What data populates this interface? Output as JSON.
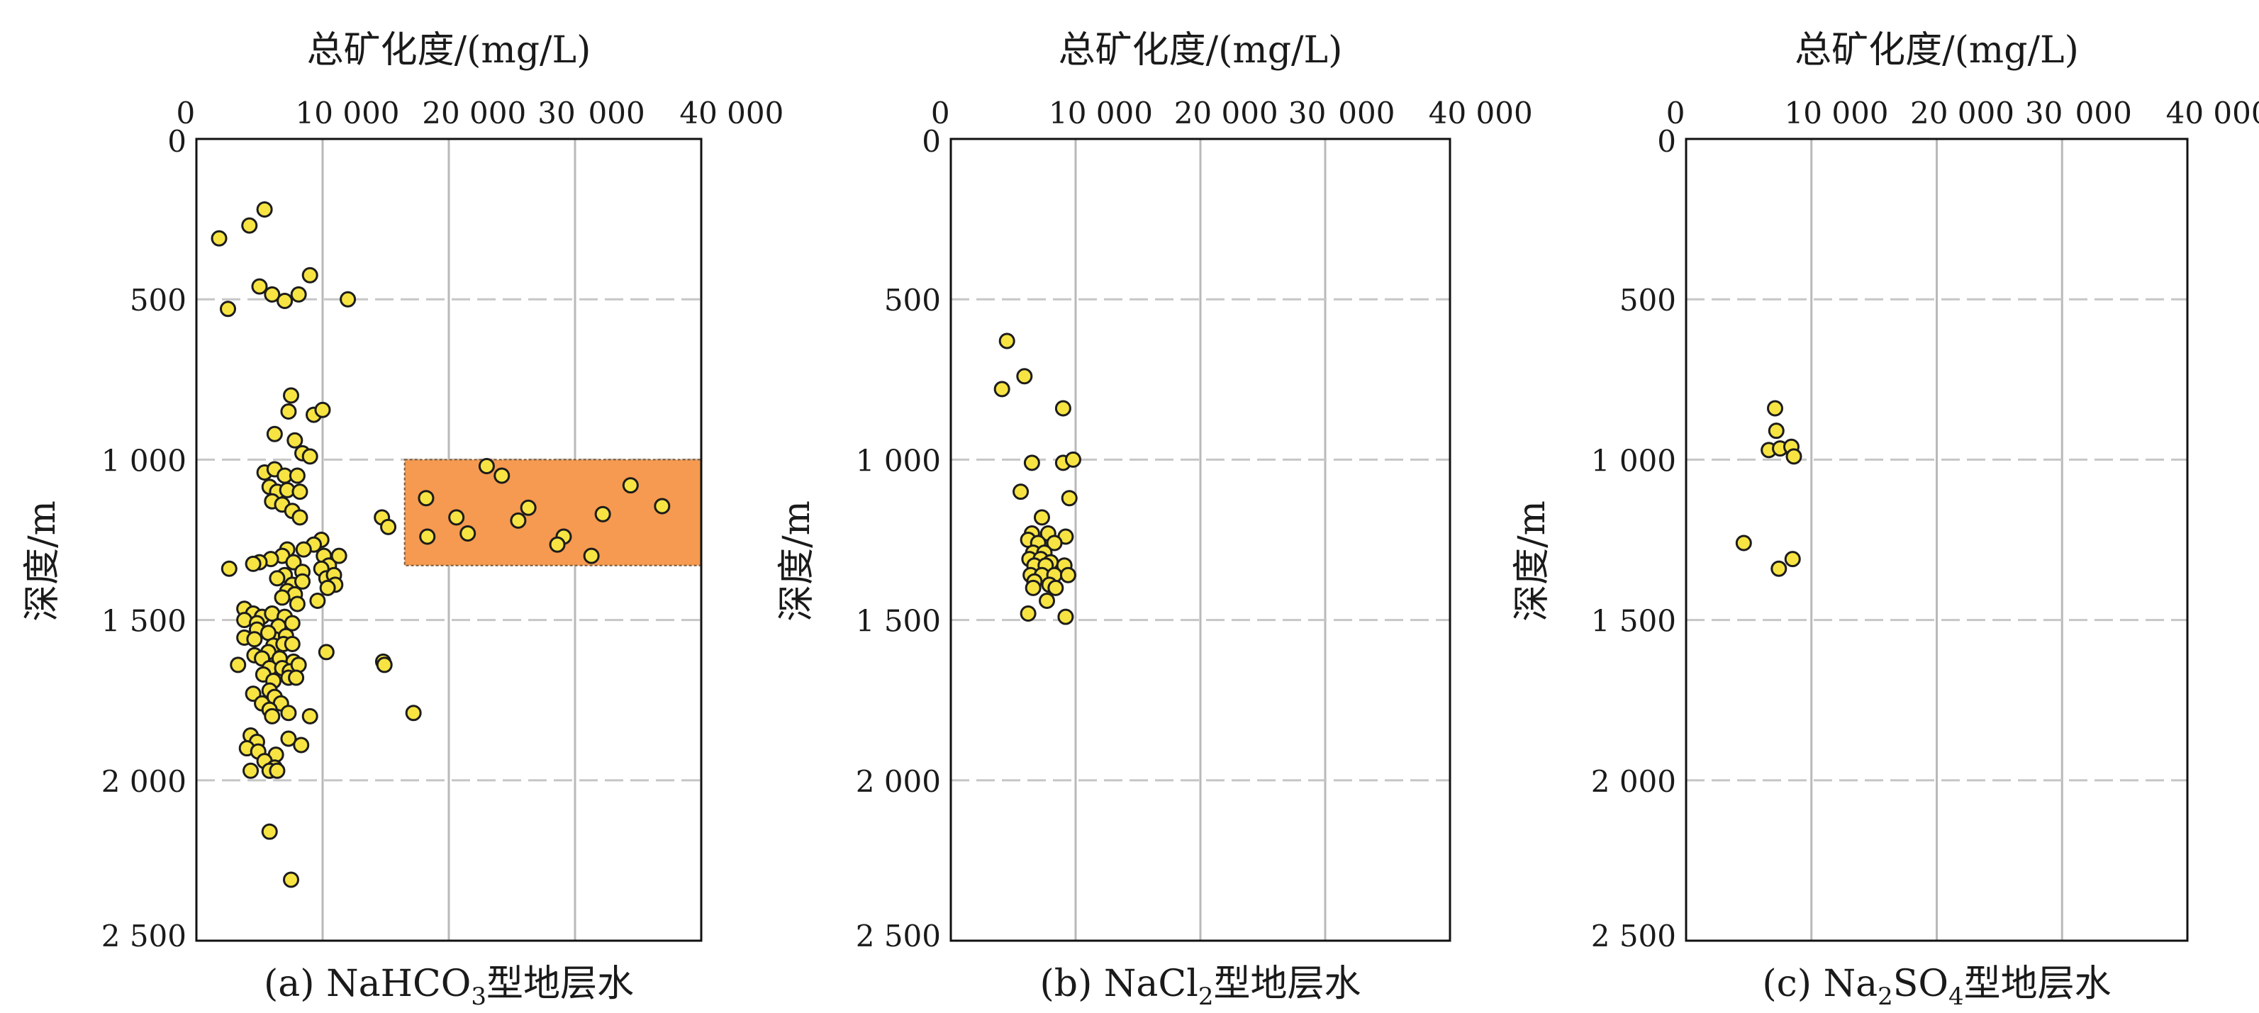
{
  "figure": {
    "marker_fill": "#f7e442",
    "marker_stroke": "#1c1c1c",
    "highlight_fill": "#f59a50",
    "highlight_stroke": "#7a5a3a"
  },
  "chart_data": [
    {
      "type": "scatter",
      "caption": "(a) NaHCO3型地层水",
      "caption_parts": {
        "pre": "(a) NaHCO",
        "sub": "3",
        "post": "型地层水"
      },
      "xlabel": "总矿化度/(mg/L)",
      "ylabel": "深度/m",
      "xlim": [
        0,
        40000
      ],
      "ylim": [
        0,
        2500
      ],
      "y_inverted": true,
      "x_axis_position": "top",
      "grid": true,
      "x_tick_labels": [
        "0",
        "10 000",
        "20 000",
        "30",
        "000",
        "40 000"
      ],
      "y_ticks": [
        0,
        500,
        1000,
        1500,
        2000,
        2500
      ],
      "y_tick_labels": [
        "0",
        "500",
        "1 000",
        "1 500",
        "2 000",
        "2 500"
      ],
      "highlight_region": {
        "x": [
          16500,
          40000
        ],
        "y": [
          1000,
          1330
        ]
      },
      "points": [
        [
          1800,
          310
        ],
        [
          5400,
          220
        ],
        [
          4200,
          270
        ],
        [
          2500,
          530
        ],
        [
          5000,
          460
        ],
        [
          6000,
          485
        ],
        [
          7000,
          505
        ],
        [
          8100,
          485
        ],
        [
          9000,
          425
        ],
        [
          12000,
          500
        ],
        [
          7500,
          800
        ],
        [
          7300,
          850
        ],
        [
          9300,
          860
        ],
        [
          10000,
          845
        ],
        [
          6200,
          920
        ],
        [
          7800,
          940
        ],
        [
          8400,
          980
        ],
        [
          9000,
          990
        ],
        [
          5400,
          1040
        ],
        [
          6200,
          1030
        ],
        [
          7000,
          1050
        ],
        [
          8000,
          1050
        ],
        [
          5800,
          1085
        ],
        [
          6400,
          1100
        ],
        [
          7200,
          1095
        ],
        [
          8200,
          1100
        ],
        [
          6000,
          1130
        ],
        [
          6800,
          1140
        ],
        [
          7600,
          1160
        ],
        [
          8200,
          1180
        ],
        [
          14700,
          1180
        ],
        [
          15200,
          1210
        ],
        [
          9900,
          1250
        ],
        [
          9300,
          1265
        ],
        [
          8500,
          1280
        ],
        [
          7200,
          1280
        ],
        [
          6800,
          1300
        ],
        [
          5900,
          1310
        ],
        [
          5000,
          1320
        ],
        [
          4500,
          1325
        ],
        [
          2600,
          1340
        ],
        [
          7700,
          1320
        ],
        [
          8400,
          1350
        ],
        [
          7000,
          1360
        ],
        [
          6400,
          1370
        ],
        [
          7600,
          1390
        ],
        [
          8400,
          1380
        ],
        [
          10100,
          1300
        ],
        [
          10500,
          1330
        ],
        [
          11300,
          1300
        ],
        [
          9900,
          1340
        ],
        [
          10300,
          1370
        ],
        [
          10900,
          1360
        ],
        [
          11000,
          1390
        ],
        [
          10400,
          1400
        ],
        [
          7200,
          1410
        ],
        [
          7800,
          1420
        ],
        [
          6800,
          1430
        ],
        [
          9600,
          1440
        ],
        [
          8000,
          1450
        ],
        [
          3800,
          1465
        ],
        [
          4500,
          1480
        ],
        [
          5200,
          1490
        ],
        [
          6000,
          1480
        ],
        [
          7000,
          1490
        ],
        [
          3800,
          1500
        ],
        [
          4800,
          1510
        ],
        [
          6500,
          1520
        ],
        [
          7600,
          1510
        ],
        [
          6200,
          1560
        ],
        [
          4800,
          1530
        ],
        [
          5700,
          1540
        ],
        [
          7100,
          1550
        ],
        [
          3800,
          1555
        ],
        [
          4600,
          1560
        ],
        [
          6100,
          1580
        ],
        [
          6900,
          1575
        ],
        [
          7600,
          1575
        ],
        [
          5700,
          1600
        ],
        [
          10300,
          1600
        ],
        [
          4600,
          1610
        ],
        [
          5200,
          1620
        ],
        [
          6600,
          1620
        ],
        [
          7700,
          1630
        ],
        [
          14800,
          1630
        ],
        [
          3300,
          1640
        ],
        [
          5800,
          1650
        ],
        [
          6800,
          1650
        ],
        [
          7400,
          1660
        ],
        [
          8100,
          1640
        ],
        [
          14900,
          1640
        ],
        [
          5300,
          1670
        ],
        [
          7300,
          1680
        ],
        [
          6100,
          1690
        ],
        [
          7900,
          1680
        ],
        [
          5800,
          1720
        ],
        [
          4500,
          1730
        ],
        [
          6200,
          1740
        ],
        [
          5200,
          1760
        ],
        [
          6700,
          1760
        ],
        [
          5800,
          1780
        ],
        [
          7300,
          1790
        ],
        [
          6000,
          1800
        ],
        [
          9000,
          1800
        ],
        [
          17200,
          1790
        ],
        [
          4300,
          1860
        ],
        [
          4800,
          1880
        ],
        [
          7300,
          1870
        ],
        [
          8300,
          1890
        ],
        [
          4000,
          1900
        ],
        [
          4900,
          1910
        ],
        [
          6300,
          1920
        ],
        [
          5400,
          1940
        ],
        [
          6200,
          1960
        ],
        [
          4300,
          1970
        ],
        [
          5800,
          1970
        ],
        [
          6400,
          1970
        ],
        [
          5800,
          2160
        ],
        [
          7500,
          2310
        ],
        [
          23000,
          1020
        ],
        [
          24200,
          1050
        ],
        [
          18200,
          1120
        ],
        [
          20600,
          1180
        ],
        [
          32200,
          1170
        ],
        [
          26300,
          1150
        ],
        [
          25500,
          1190
        ],
        [
          21500,
          1230
        ],
        [
          18300,
          1240
        ],
        [
          29100,
          1240
        ],
        [
          28600,
          1265
        ],
        [
          31300,
          1300
        ],
        [
          34400,
          1080
        ],
        [
          36900,
          1145
        ]
      ]
    },
    {
      "type": "scatter",
      "caption": "(b) NaCl2型地层水",
      "caption_parts": {
        "pre": "(b) NaCl",
        "sub": "2",
        "post": "型地层水"
      },
      "xlabel": "总矿化度/(mg/L)",
      "ylabel": "深度/m",
      "xlim": [
        0,
        40000
      ],
      "ylim": [
        0,
        2500
      ],
      "y_inverted": true,
      "x_axis_position": "top",
      "grid": true,
      "x_tick_labels": [
        "0",
        "10 000",
        "20 000",
        "30",
        "000",
        "40 000"
      ],
      "y_ticks": [
        0,
        500,
        1000,
        1500,
        2000,
        2500
      ],
      "y_tick_labels": [
        "0",
        "500",
        "1 000",
        "1 500",
        "2 000",
        "2 500"
      ],
      "points": [
        [
          4500,
          630
        ],
        [
          4100,
          780
        ],
        [
          5900,
          740
        ],
        [
          9000,
          840
        ],
        [
          6500,
          1010
        ],
        [
          9000,
          1010
        ],
        [
          9800,
          1000
        ],
        [
          5600,
          1100
        ],
        [
          9500,
          1120
        ],
        [
          7300,
          1180
        ],
        [
          6500,
          1230
        ],
        [
          7800,
          1230
        ],
        [
          9200,
          1240
        ],
        [
          6200,
          1250
        ],
        [
          7000,
          1260
        ],
        [
          8300,
          1260
        ],
        [
          6600,
          1290
        ],
        [
          7500,
          1290
        ],
        [
          6300,
          1310
        ],
        [
          7200,
          1310
        ],
        [
          8000,
          1320
        ],
        [
          6700,
          1330
        ],
        [
          7600,
          1330
        ],
        [
          9100,
          1330
        ],
        [
          6400,
          1360
        ],
        [
          7300,
          1360
        ],
        [
          8300,
          1360
        ],
        [
          9400,
          1360
        ],
        [
          6700,
          1380
        ],
        [
          7900,
          1390
        ],
        [
          6600,
          1400
        ],
        [
          8400,
          1400
        ],
        [
          7700,
          1440
        ],
        [
          6200,
          1480
        ],
        [
          9200,
          1490
        ]
      ]
    },
    {
      "type": "scatter",
      "caption": "(c) Na2SO4型地层水",
      "caption_parts": {
        "pre": "(c) Na",
        "sub": "2",
        "mid": "SO",
        "sub2": "4",
        "post": "型地层水"
      },
      "xlabel": "总矿化度/(mg/L)",
      "ylabel": "深度/m",
      "xlim": [
        0,
        40000
      ],
      "ylim": [
        0,
        2500
      ],
      "y_inverted": true,
      "x_axis_position": "top",
      "grid": true,
      "x_tick_labels": [
        "0",
        "10 000",
        "20 000",
        "30",
        "000",
        "40 000"
      ],
      "y_ticks": [
        0,
        500,
        1000,
        1500,
        2000,
        2500
      ],
      "y_tick_labels": [
        "0",
        "500",
        "1 000",
        "1 500",
        "2 000",
        "2 500"
      ],
      "points": [
        [
          7100,
          840
        ],
        [
          7200,
          910
        ],
        [
          6600,
          970
        ],
        [
          7500,
          965
        ],
        [
          8400,
          960
        ],
        [
          8600,
          990
        ],
        [
          4600,
          1260
        ],
        [
          8500,
          1310
        ],
        [
          7400,
          1340
        ]
      ]
    }
  ]
}
